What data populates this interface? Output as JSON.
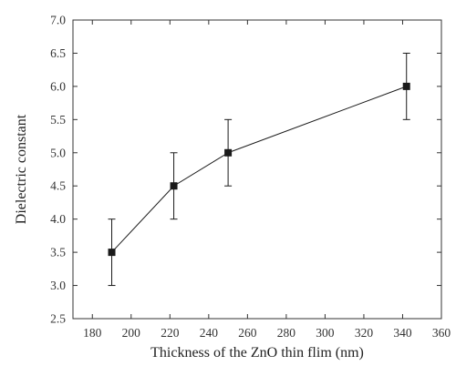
{
  "chart_data": {
    "type": "scatter",
    "xlabel": "Thickness of the ZnO thin flim (nm)",
    "ylabel": "Dielectric constant",
    "xlim": [
      170,
      360
    ],
    "ylim": [
      2.5,
      7.0
    ],
    "xticks": [
      "180",
      "200",
      "220",
      "240",
      "260",
      "280",
      "300",
      "320",
      "340",
      "360"
    ],
    "yticks": [
      "2.5",
      "3.0",
      "3.5",
      "4.0",
      "4.5",
      "5.0",
      "5.5",
      "6.0",
      "6.5",
      "7.0"
    ],
    "grid": false,
    "series": [
      {
        "x": [
          190,
          222,
          250,
          342
        ],
        "y": [
          3.5,
          4.5,
          5.0,
          6.0
        ],
        "error": [
          0.5,
          0.5,
          0.5,
          0.5
        ],
        "marker": "square",
        "line": "solid",
        "color": "#1a1a1a"
      }
    ]
  }
}
